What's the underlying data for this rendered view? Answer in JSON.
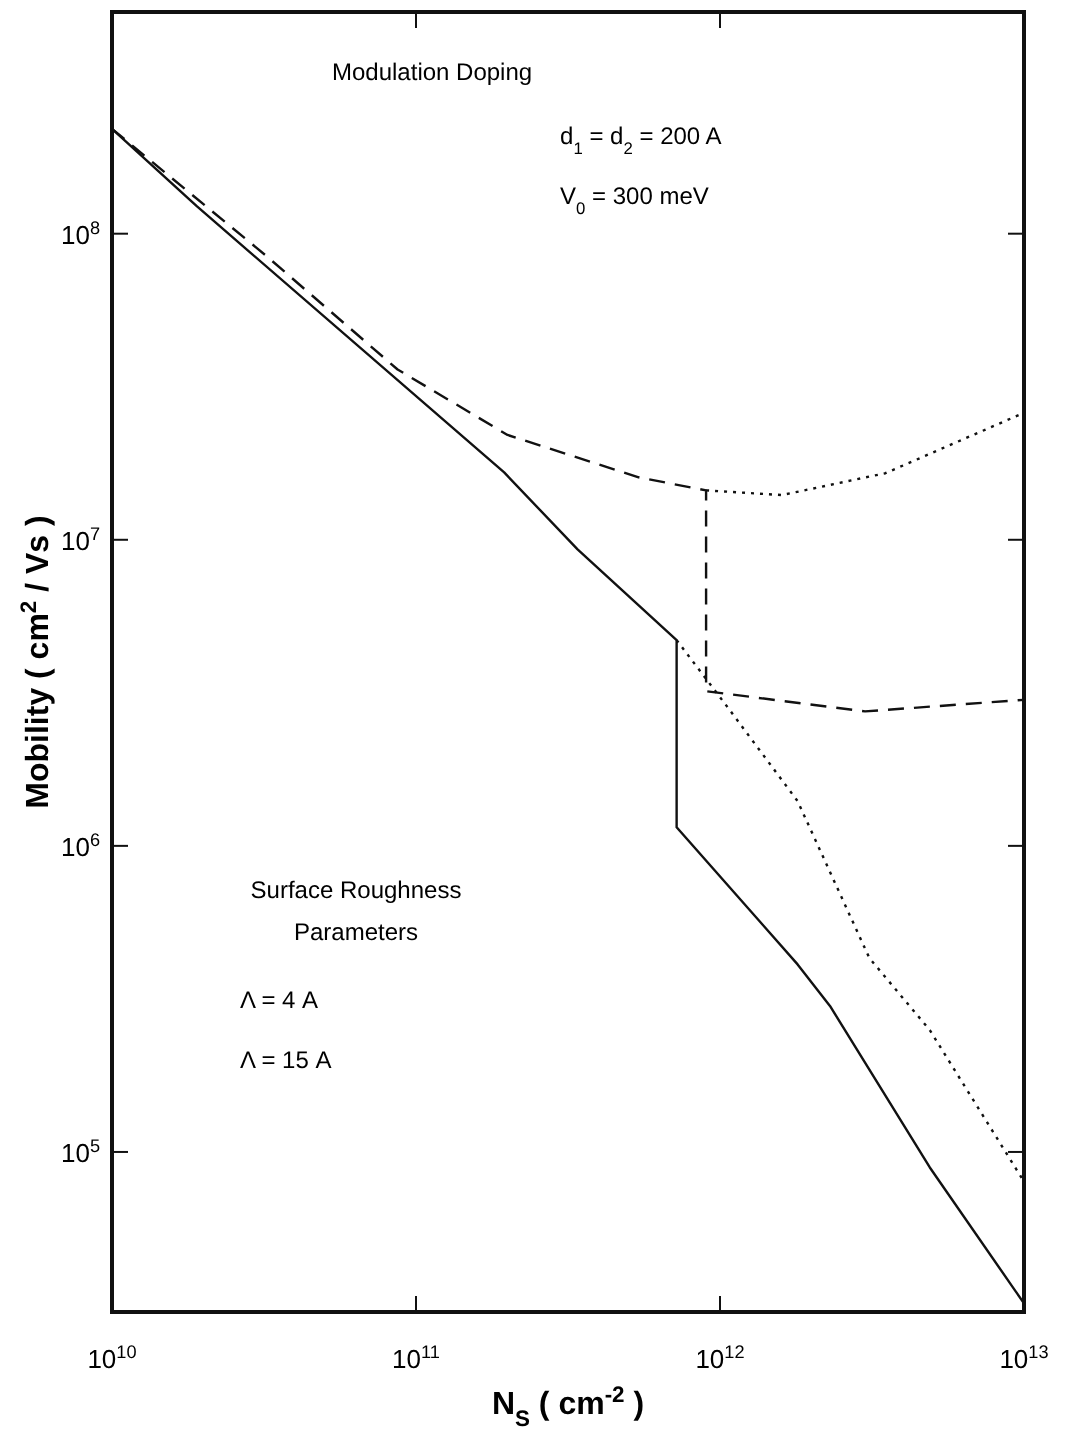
{
  "chart_data": {
    "type": "line",
    "log": "xy",
    "grid": false,
    "xlabel": "N$_{S}$   ( cm$^{-2}$ )",
    "ylabel": "Mobility   ( cm$^{2}$ / Vs )",
    "xlim": [
      10000000000.0,
      10000000000000.0
    ],
    "ylim": [
      30000.0,
      530000000.0
    ],
    "xticks": [
      {
        "value": 10000000000.0,
        "label": "10$^{10}$"
      },
      {
        "value": 100000000000.0,
        "label": "10$^{11}$"
      },
      {
        "value": 1000000000000.0,
        "label": "10$^{12}$"
      },
      {
        "value": 10000000000000.0,
        "label": "10$^{13}$"
      }
    ],
    "yticks": [
      {
        "value": 100000.0,
        "label": "10$^{5}$"
      },
      {
        "value": 1000000.0,
        "label": "10$^{6}$"
      },
      {
        "value": 10000000.0,
        "label": "10$^{7}$"
      },
      {
        "value": 100000000.0,
        "label": "10$^{8}$"
      }
    ],
    "annotations": [
      "Modulation Doping",
      "d$_{1}$ = d$_{2}$ =  200 A",
      "V$_{0}$ = 300 meV",
      "Surface Roughness",
      "Parameters",
      "Λ  =  4   A",
      "Λ  =  15 A"
    ],
    "series": [
      {
        "color": "#111111",
        "line_style": "solid",
        "x": [
          10000000000.0,
          19000000000.0,
          195000000000.0,
          340000000000.0,
          720000000000.0,
          720000000000.0,
          1800000000000.0,
          2300000000000.0,
          4900000000000.0,
          10000000000000.0
        ],
        "values": [
          220000000.0,
          123000000.0,
          16600000.0,
          9300000.0,
          4700000.0,
          1150000.0,
          410000.0,
          300000.0,
          89000.0,
          32000.0
        ]
      },
      {
        "color": "#111111",
        "line_style": "dashed",
        "x": [
          10000000000.0,
          32000000000.0,
          87000000000.0,
          200000000000.0,
          540000000000.0,
          900000000000.0,
          900000000000.0,
          3000000000000.0,
          10000000000000.0
        ],
        "values": [
          220000000.0,
          85000000.0,
          36000000.0,
          22000000.0,
          16000000.0,
          14500000.0,
          3200000.0,
          2750000.0,
          3000000.0
        ]
      },
      {
        "color": "#111111",
        "line_style": "dotted",
        "x": [
          900000000000.0,
          1600000000000.0,
          3500000000000.0,
          10000000000000.0
        ],
        "values": [
          14500000.0,
          14000000.0,
          16500000.0,
          26000000.0
        ]
      },
      {
        "color": "#111111",
        "line_style": "dotted",
        "x": [
          720000000000.0,
          1070000000000.0,
          1800000000000.0,
          3100000000000.0,
          4900000000000.0,
          10000000000000.0
        ],
        "values": [
          4700000.0,
          2800000.0,
          1400000.0,
          430000.0,
          250000.0,
          80000.0
        ]
      }
    ]
  }
}
